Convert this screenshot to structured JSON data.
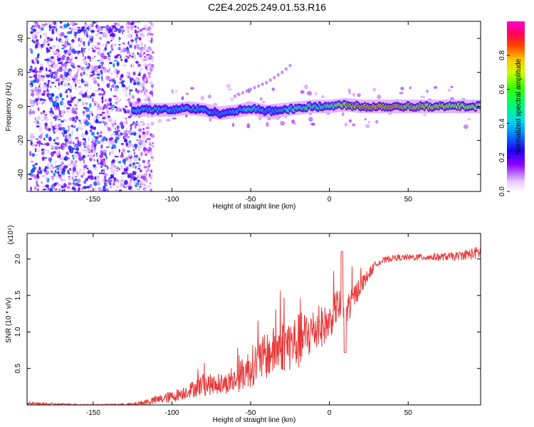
{
  "title": "C2E4.2025.249.01.53.R16",
  "chart_data": [
    {
      "type": "heatmap",
      "name": "spectrogram",
      "xlabel": "Height of straight line (km)",
      "ylabel": "Frequency (Hz)",
      "xlim": [
        -192,
        96
      ],
      "ylim": [
        -50,
        50
      ],
      "xticks": [
        -150,
        -100,
        -50,
        0,
        50
      ],
      "yticks": [
        -40,
        -20,
        0,
        20,
        40
      ],
      "colorbar": {
        "label": "Normalized spectral amplitude",
        "range": [
          0,
          1
        ],
        "ticks": [
          0.0,
          0.2,
          0.4,
          0.6,
          0.8
        ],
        "tick_labels": [
          "0.0",
          "0.2",
          "0.4",
          "0.6",
          "0.8"
        ]
      },
      "main_trace": {
        "x": [
          -125,
          -110,
          -100,
          -90,
          -80,
          -70,
          -60,
          -50,
          -40,
          -30,
          -20,
          -10,
          0,
          10,
          20,
          40,
          60,
          80,
          95
        ],
        "freq": [
          -2,
          -2,
          -2,
          -1,
          -2,
          -4,
          -3,
          -1,
          -3,
          -2,
          -1,
          0,
          0,
          1,
          0,
          0,
          0,
          0,
          0
        ],
        "amplitude": [
          0.45,
          0.45,
          0.4,
          0.45,
          0.4,
          0.35,
          0.4,
          0.5,
          0.4,
          0.45,
          0.6,
          0.55,
          0.6,
          0.8,
          0.85,
          0.85,
          0.8,
          0.75,
          0.7
        ]
      },
      "branch_trace": {
        "x": [
          -60,
          -50,
          -40,
          -30,
          -25
        ],
        "freq": [
          6,
          10,
          14,
          20,
          24
        ]
      },
      "noise_region_x": [
        -190,
        -120
      ]
    },
    {
      "type": "line",
      "name": "snr",
      "xlabel": "Height of straight line (km)",
      "ylabel": "SNR (10 * v/v)",
      "multiplier": "(x10⁴)",
      "xlim": [
        -192,
        96
      ],
      "ylim": [
        0,
        2.35
      ],
      "xticks": [
        -150,
        -100,
        -50,
        0,
        50
      ],
      "yticks": [
        0.5,
        1.0,
        1.5,
        2.0
      ],
      "ytick_labels": [
        "0.5",
        "1.0",
        "1.5",
        "2.0"
      ],
      "color": "#e83a3a",
      "envelope_x": [
        -192,
        -170,
        -150,
        -125,
        -115,
        -100,
        -90,
        -80,
        -70,
        -60,
        -50,
        -40,
        -30,
        -20,
        -10,
        0,
        5,
        10,
        20,
        30,
        40,
        60,
        80,
        96
      ],
      "envelope_y": [
        0.02,
        0.01,
        0.0,
        0.01,
        0.05,
        0.12,
        0.2,
        0.3,
        0.28,
        0.35,
        0.55,
        0.7,
        0.85,
        0.9,
        1.05,
        1.15,
        1.4,
        1.3,
        1.65,
        1.95,
        2.02,
        2.03,
        2.04,
        2.1
      ],
      "envelope_noise": [
        0.03,
        0.02,
        0.01,
        0.02,
        0.06,
        0.1,
        0.12,
        0.2,
        0.15,
        0.22,
        0.35,
        0.4,
        0.45,
        0.5,
        0.4,
        0.3,
        0.3,
        0.3,
        0.15,
        0.06,
        0.05,
        0.06,
        0.07,
        0.12
      ]
    }
  ]
}
